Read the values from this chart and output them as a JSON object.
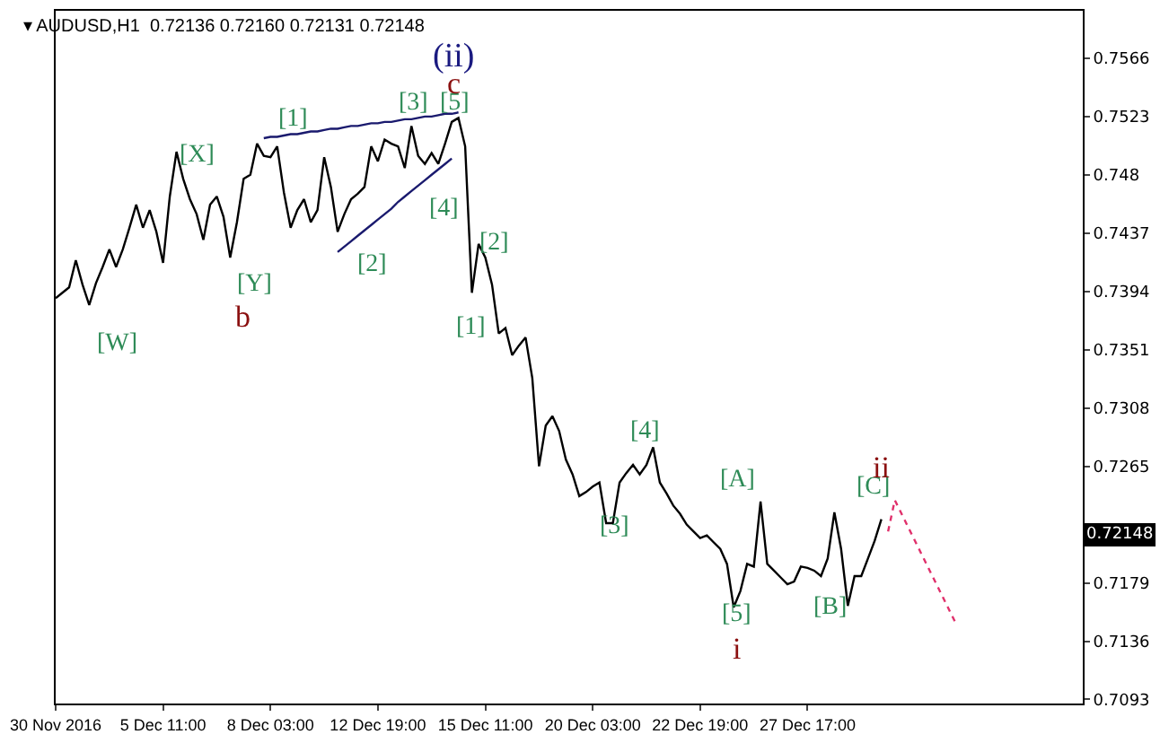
{
  "chart_data": {
    "type": "line",
    "title": "▾ AUDUSD,H1  0.72136 0.72160 0.72131 0.72148",
    "categories": [
      "30 Nov 2016",
      null,
      null,
      null,
      null,
      null,
      null,
      null,
      null,
      null,
      null,
      null,
      null,
      null,
      null,
      null,
      "5 Dec 11:00",
      null,
      null,
      null,
      null,
      null,
      null,
      null,
      null,
      null,
      null,
      null,
      null,
      null,
      null,
      null,
      "8 Dec 03:00",
      null,
      null,
      null,
      null,
      null,
      null,
      null,
      null,
      null,
      null,
      null,
      null,
      null,
      null,
      null,
      "12 Dec 19:00",
      null,
      null,
      null,
      null,
      null,
      null,
      null,
      null,
      null,
      null,
      null,
      null,
      null,
      null,
      null,
      "15 Dec 11:00",
      null,
      null,
      null,
      null,
      null,
      null,
      null,
      null,
      null,
      null,
      null,
      null,
      null,
      null,
      null,
      "20 Dec 03:00",
      null,
      null,
      null,
      null,
      null,
      null,
      null,
      null,
      null,
      null,
      null,
      null,
      null,
      null,
      null,
      "22 Dec 19:00",
      null,
      null,
      null,
      null,
      null,
      null,
      null,
      null,
      null,
      null,
      null,
      null,
      null,
      null,
      null,
      "27 Dec 17:00",
      null,
      null,
      null,
      null,
      null,
      null,
      null,
      null,
      null,
      null,
      null,
      null,
      null,
      null,
      null,
      null,
      null,
      null,
      null,
      null,
      null,
      null,
      null,
      null,
      null,
      null,
      null,
      null,
      null,
      null,
      null,
      null,
      null,
      null,
      null,
      null,
      null,
      null,
      null,
      null,
      null
    ],
    "series": [
      {
        "color": "#000000",
        "values": [
          0.7389,
          0.7393,
          0.7397,
          0.7417,
          0.7399,
          0.7384,
          0.74,
          0.7412,
          0.7425,
          0.7412,
          0.7425,
          0.7441,
          0.7458,
          0.7441,
          0.7454,
          0.7438,
          0.7415,
          0.7464,
          0.7497,
          0.7477,
          0.7462,
          0.7451,
          0.7432,
          0.7458,
          0.7464,
          0.7449,
          0.7419,
          0.7445,
          0.7477,
          0.748,
          0.7503,
          0.7494,
          0.7493,
          0.7501,
          0.7467,
          0.7441,
          0.7454,
          0.7462,
          0.7445,
          0.7454,
          0.7493,
          0.7471,
          0.7438,
          0.7451,
          0.7462,
          0.7466,
          0.7471,
          0.7501,
          0.749,
          0.7506,
          0.7503,
          0.7501,
          0.7485,
          0.7516,
          0.7494,
          0.7488,
          0.7496,
          0.7488,
          0.7503,
          0.7519,
          0.7522,
          0.7501,
          0.7393,
          0.7429,
          0.7419,
          0.7399,
          0.7363,
          0.7367,
          0.7347,
          0.7354,
          0.736,
          0.733,
          0.7265,
          0.7295,
          0.7302,
          0.7291,
          0.727,
          0.7259,
          0.7243,
          0.7246,
          0.725,
          0.7253,
          0.7223,
          0.7223,
          0.7253,
          0.726,
          0.7266,
          0.7259,
          0.7266,
          0.7279,
          0.7253,
          0.7245,
          0.7236,
          0.723,
          0.7222,
          0.7217,
          0.7212,
          0.7214,
          0.7209,
          0.7204,
          0.7193,
          0.7161,
          0.7173,
          0.7193,
          0.7191,
          0.7239,
          0.7193,
          0.7188,
          0.7183,
          0.7178,
          0.718,
          0.7191,
          0.719,
          0.7188,
          0.7184,
          0.7197,
          0.7231,
          0.7204,
          0.7162,
          0.7184,
          0.7184,
          0.7197,
          0.721,
          0.7226,
          null,
          null,
          null,
          null,
          null,
          null,
          null,
          null,
          null,
          null,
          null,
          null,
          null,
          null,
          null,
          null,
          null,
          null,
          null,
          null,
          null,
          null,
          null,
          null,
          null,
          null,
          null,
          null,
          null,
          null
        ]
      },
      {
        "color": "#1a1a6e",
        "values": [
          null,
          null,
          null,
          null,
          null,
          null,
          null,
          null,
          null,
          null,
          null,
          null,
          null,
          null,
          null,
          null,
          null,
          null,
          null,
          null,
          null,
          null,
          null,
          null,
          null,
          null,
          null,
          null,
          null,
          null,
          null,
          0.7507,
          0.7508,
          0.7508,
          0.7509,
          0.751,
          0.751,
          0.7511,
          0.7512,
          0.7512,
          0.7513,
          0.7514,
          0.7514,
          0.7515,
          0.7516,
          0.7516,
          0.7517,
          0.7518,
          0.7518,
          0.7519,
          0.7519,
          0.752,
          0.7521,
          0.7521,
          0.7522,
          0.7523,
          0.7523,
          0.7524,
          0.7525,
          0.7525,
          0.7526,
          null,
          null,
          null,
          null,
          null,
          null,
          null,
          null,
          null,
          null,
          null,
          null,
          null,
          null,
          null,
          null,
          null,
          null,
          null,
          null,
          null,
          null,
          null,
          null,
          null,
          null,
          null,
          null,
          null,
          null,
          null,
          null,
          null,
          null,
          null,
          null,
          null,
          null,
          null,
          null,
          null,
          null,
          null,
          null,
          null,
          null,
          null,
          null,
          null,
          null,
          null,
          null,
          null,
          null,
          null,
          null,
          null,
          null,
          null,
          null,
          null,
          null,
          null,
          null,
          null,
          null,
          null,
          null,
          null,
          null,
          null,
          null,
          null,
          null,
          null,
          null,
          null,
          null,
          null,
          null,
          null,
          null,
          null,
          null,
          null,
          null,
          null,
          null,
          null,
          null,
          null,
          null,
          null
        ]
      },
      {
        "color": "#1a1a6e",
        "values": [
          null,
          null,
          null,
          null,
          null,
          null,
          null,
          null,
          null,
          null,
          null,
          null,
          null,
          null,
          null,
          null,
          null,
          null,
          null,
          null,
          null,
          null,
          null,
          null,
          null,
          null,
          null,
          null,
          null,
          null,
          null,
          null,
          null,
          null,
          null,
          null,
          null,
          null,
          null,
          null,
          null,
          null,
          0.7423,
          0.7427,
          0.7431,
          0.7435,
          0.7439,
          0.7443,
          0.7447,
          0.7451,
          0.7455,
          0.746,
          0.7464,
          0.7468,
          0.7472,
          0.7476,
          0.748,
          0.7484,
          0.7488,
          0.7492,
          null,
          null,
          null,
          null,
          null,
          null,
          null,
          null,
          null,
          null,
          null,
          null,
          null,
          null,
          null,
          null,
          null,
          null,
          null,
          null,
          null,
          null,
          null,
          null,
          null,
          null,
          null,
          null,
          null,
          null,
          null,
          null,
          null,
          null,
          null,
          null,
          null,
          null,
          null,
          null,
          null,
          null,
          null,
          null,
          null,
          null,
          null,
          null,
          null,
          null,
          null,
          null,
          null,
          null,
          null,
          null,
          null,
          null,
          null,
          null,
          null,
          null,
          null,
          null,
          null,
          null,
          null,
          null,
          null,
          null,
          null,
          null,
          null,
          null,
          null,
          null,
          null,
          null,
          null,
          null,
          null,
          null,
          null,
          null,
          null,
          null,
          null,
          null,
          null,
          null,
          null,
          null,
          null,
          null
        ]
      },
      {
        "color": "#e0306b",
        "line_style": "dotted",
        "values": [
          null,
          null,
          null,
          null,
          null,
          null,
          null,
          null,
          null,
          null,
          null,
          null,
          null,
          null,
          null,
          null,
          null,
          null,
          null,
          null,
          null,
          null,
          null,
          null,
          null,
          null,
          null,
          null,
          null,
          null,
          null,
          null,
          null,
          null,
          null,
          null,
          null,
          null,
          null,
          null,
          null,
          null,
          null,
          null,
          null,
          null,
          null,
          null,
          null,
          null,
          null,
          null,
          null,
          null,
          null,
          null,
          null,
          null,
          null,
          null,
          null,
          null,
          null,
          null,
          null,
          null,
          null,
          null,
          null,
          null,
          null,
          null,
          null,
          null,
          null,
          null,
          null,
          null,
          null,
          null,
          null,
          null,
          null,
          null,
          null,
          null,
          null,
          null,
          null,
          null,
          null,
          null,
          null,
          null,
          null,
          null,
          null,
          null,
          null,
          null,
          null,
          null,
          null,
          null,
          null,
          null,
          null,
          null,
          null,
          null,
          null,
          null,
          null,
          null,
          null,
          null,
          null,
          null,
          null,
          null,
          null,
          null,
          null,
          null,
          0.7217,
          0.724,
          0.723,
          0.722,
          0.721,
          0.72,
          0.719,
          0.718,
          0.717,
          0.716,
          0.715,
          null,
          null,
          null,
          null,
          null,
          null,
          null,
          null,
          null,
          null,
          null,
          null,
          null,
          null,
          null,
          null,
          null,
          null,
          null
        ]
      }
    ],
    "ylim": [
      0.709,
      0.7601
    ],
    "yticks": [
      0.7566,
      0.7523,
      0.748,
      0.7437,
      0.7394,
      0.7351,
      0.7308,
      0.7265,
      {
        "value": 0.7222,
        "label": null
      },
      0.7179,
      0.7136,
      0.7093
    ],
    "annotations": [
      "[W]",
      "[X]",
      "[Y]",
      "b",
      "[1]",
      "[2]",
      "[3]",
      "[4]",
      "[5]",
      "c",
      "(ii)",
      "[2]",
      "[1]",
      "[4]",
      "[3]",
      "[A]",
      "[5]",
      "i",
      "[B]",
      "[C]",
      "ii",
      {
        "text": "0.72148",
        "y": 0.72148
      }
    ]
  }
}
